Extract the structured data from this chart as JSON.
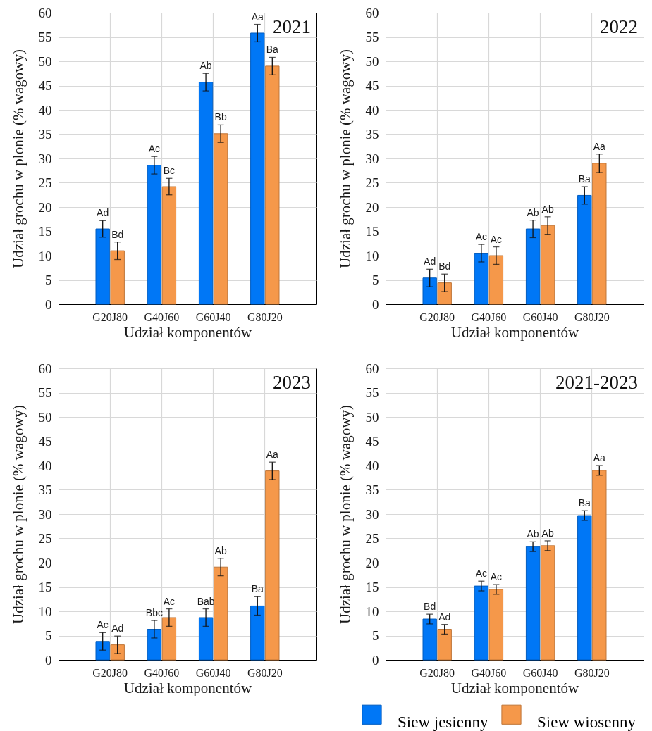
{
  "chart_data": [
    {
      "type": "bar",
      "title": "2021",
      "xlabel": "Udział komponentów",
      "ylabel": "Udział grochu w plonie (% wagowy)",
      "categories": [
        "G20J80",
        "G40J60",
        "G60J40",
        "G80J20"
      ],
      "series": [
        {
          "name": "Siew jesienny",
          "color": "#0077f6",
          "values": [
            15.5,
            28.6,
            45.7,
            55.8
          ],
          "errors": [
            1.7,
            1.8,
            1.8,
            1.8
          ],
          "value_labels": [
            "Ad",
            "Ac",
            "Ab",
            "Aa"
          ]
        },
        {
          "name": "Siew wiosenny",
          "color": "#f5984a",
          "values": [
            11.0,
            24.2,
            35.1,
            49.0
          ],
          "errors": [
            1.8,
            1.7,
            1.8,
            1.8
          ],
          "value_labels": [
            "Bd",
            "Bc",
            "Bb",
            "Ba"
          ]
        }
      ],
      "ylim": [
        0,
        60
      ],
      "yticks": [
        0,
        5,
        10,
        15,
        20,
        25,
        30,
        35,
        40,
        45,
        50,
        55,
        60
      ],
      "grid": true,
      "legend": "bottom"
    },
    {
      "type": "bar",
      "title": "2022",
      "xlabel": "Udział komponentów",
      "ylabel": "Udział grochu w plonie (% wagowy)",
      "categories": [
        "G20J80",
        "G40J60",
        "G60J40",
        "G80J20"
      ],
      "series": [
        {
          "name": "Siew jesienny",
          "color": "#0077f6",
          "values": [
            5.4,
            10.5,
            15.5,
            22.4
          ],
          "errors": [
            1.8,
            1.8,
            1.8,
            1.8
          ],
          "value_labels": [
            "Ad",
            "Ac",
            "Ab",
            "Ba"
          ]
        },
        {
          "name": "Siew wiosenny",
          "color": "#f5984a",
          "values": [
            4.4,
            10.0,
            16.2,
            29.0
          ],
          "errors": [
            1.8,
            1.8,
            1.8,
            1.9
          ],
          "value_labels": [
            "Bd",
            "Ac",
            "Ab",
            "Aa"
          ]
        }
      ],
      "ylim": [
        0,
        60
      ],
      "yticks": [
        0,
        5,
        10,
        15,
        20,
        25,
        30,
        35,
        40,
        45,
        50,
        55,
        60
      ],
      "grid": true
    },
    {
      "type": "bar",
      "title": "2023",
      "xlabel": "Udział komponentów",
      "ylabel": "Udział grochu w plonie (% wagowy)",
      "categories": [
        "G20J80",
        "G40J60",
        "G60J40",
        "G80J20"
      ],
      "series": [
        {
          "name": "Siew jesienny",
          "color": "#0077f6",
          "values": [
            3.8,
            6.3,
            8.7,
            11.1
          ],
          "errors": [
            1.8,
            1.8,
            1.8,
            1.9
          ],
          "value_labels": [
            "Ac",
            "Bbc",
            "Bab",
            "Ba"
          ]
        },
        {
          "name": "Siew wiosenny",
          "color": "#f5984a",
          "values": [
            3.1,
            8.7,
            19.1,
            38.9
          ],
          "errors": [
            1.8,
            1.8,
            1.8,
            1.8
          ],
          "value_labels": [
            "Ad",
            "Ac",
            "Ab",
            "Aa"
          ]
        }
      ],
      "ylim": [
        0,
        60
      ],
      "yticks": [
        0,
        5,
        10,
        15,
        20,
        25,
        30,
        35,
        40,
        45,
        50,
        55,
        60
      ],
      "grid": true
    },
    {
      "type": "bar",
      "title": "2021-2023",
      "xlabel": "Udział komponentów",
      "ylabel": "Udział grochu w plonie (% wagowy)",
      "categories": [
        "G20J80",
        "G40J60",
        "G60J40",
        "G80J20"
      ],
      "series": [
        {
          "name": "Siew jesienny",
          "color": "#0077f6",
          "values": [
            8.4,
            15.2,
            23.3,
            29.7
          ],
          "errors": [
            1.0,
            1.0,
            1.0,
            1.0
          ],
          "value_labels": [
            "Bd",
            "Ac",
            "Ab",
            "Ba"
          ]
        },
        {
          "name": "Siew wiosenny",
          "color": "#f5984a",
          "values": [
            6.3,
            14.5,
            23.5,
            39.0
          ],
          "errors": [
            1.0,
            1.0,
            1.0,
            1.0
          ],
          "value_labels": [
            "Ad",
            "Ac",
            "Ab",
            "Aa"
          ]
        }
      ],
      "ylim": [
        0,
        60
      ],
      "yticks": [
        0,
        5,
        10,
        15,
        20,
        25,
        30,
        35,
        40,
        45,
        50,
        55,
        60
      ],
      "grid": true
    }
  ]
}
